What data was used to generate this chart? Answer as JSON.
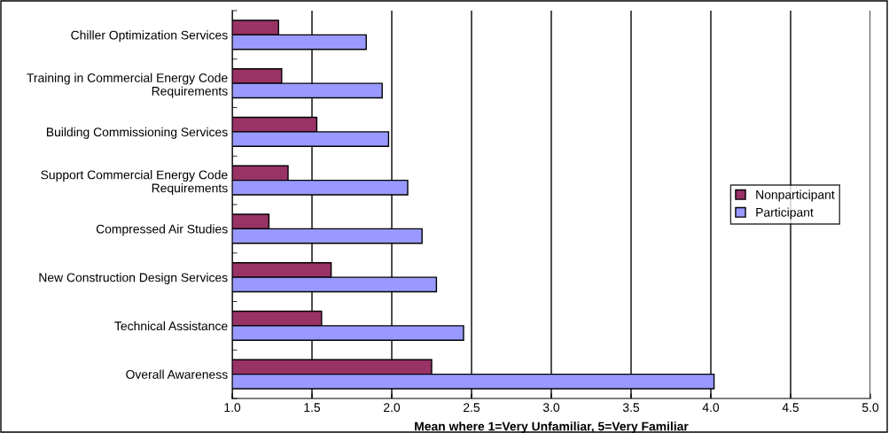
{
  "chart_data": {
    "type": "bar",
    "orientation": "horizontal",
    "xlabel": "Mean where 1=Very Unfamiliar, 5=Very Familiar",
    "categories": [
      "Chiller Optimization Services",
      "Training in Commercial Energy Code Requirements",
      "Building Commissioning Services",
      "Support Commercial Energy Code Requirements",
      "Compressed Air Studies",
      "New Construction Design Services",
      "Technical Assistance",
      "Overall Awareness"
    ],
    "series": [
      {
        "name": "Nonparticipant",
        "color": "#993366",
        "values": [
          1.29,
          1.31,
          1.53,
          1.35,
          1.23,
          1.62,
          1.56,
          2.25
        ]
      },
      {
        "name": "Participant",
        "color": "#9999ff",
        "values": [
          1.84,
          1.94,
          1.98,
          2.1,
          2.19,
          2.28,
          2.45,
          4.02
        ]
      }
    ],
    "xlim": [
      1.0,
      5.0
    ],
    "xticks": [
      {
        "value": 1.0,
        "label": "1.0"
      },
      {
        "value": 1.5,
        "label": "1.5"
      },
      {
        "value": 2.0,
        "label": "2.0"
      },
      {
        "value": 2.5,
        "label": "2.5"
      },
      {
        "value": 3.0,
        "label": "3.0"
      },
      {
        "value": 3.5,
        "label": "3.5"
      },
      {
        "value": 4.0,
        "label": "4.0"
      },
      {
        "value": 4.5,
        "label": "4.5"
      },
      {
        "value": 5.0,
        "label": "5.0"
      }
    ],
    "grid": "x",
    "legend": "right"
  }
}
